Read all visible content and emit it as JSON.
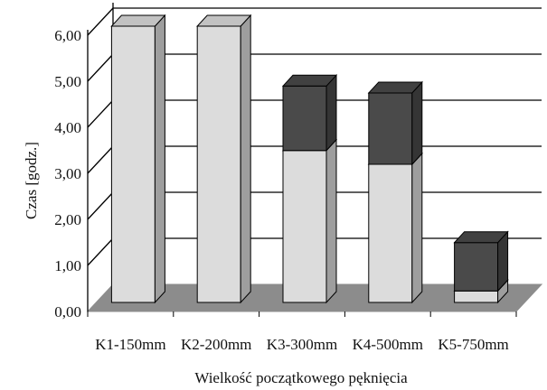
{
  "chart_data": {
    "type": "bar",
    "stacked": true,
    "three_d": true,
    "categories": [
      "K1-150mm",
      "K2-200mm",
      "K3-300mm",
      "K4-500mm",
      "K5-750mm"
    ],
    "series": [
      {
        "values": [
          6.0,
          6.0,
          3.3,
          3.0,
          0.25
        ],
        "color": "#dcdcdc"
      },
      {
        "values": [
          0.0,
          0.0,
          1.4,
          1.55,
          1.05
        ],
        "color": "#4a4a4a"
      }
    ],
    "ylim": [
      0,
      6
    ],
    "yticks": [
      "0,00",
      "1,00",
      "2,00",
      "3,00",
      "4,00",
      "5,00",
      "6,00"
    ],
    "ylabel": "Czas [godz.]",
    "xlabel": "Wielkość początkowego pęknięcia",
    "grid": true,
    "legend": "none",
    "colors": {
      "floor": "#8c8c8c",
      "back_wall": "#ffffff",
      "grid": "#000000",
      "outline": "#000000"
    }
  }
}
